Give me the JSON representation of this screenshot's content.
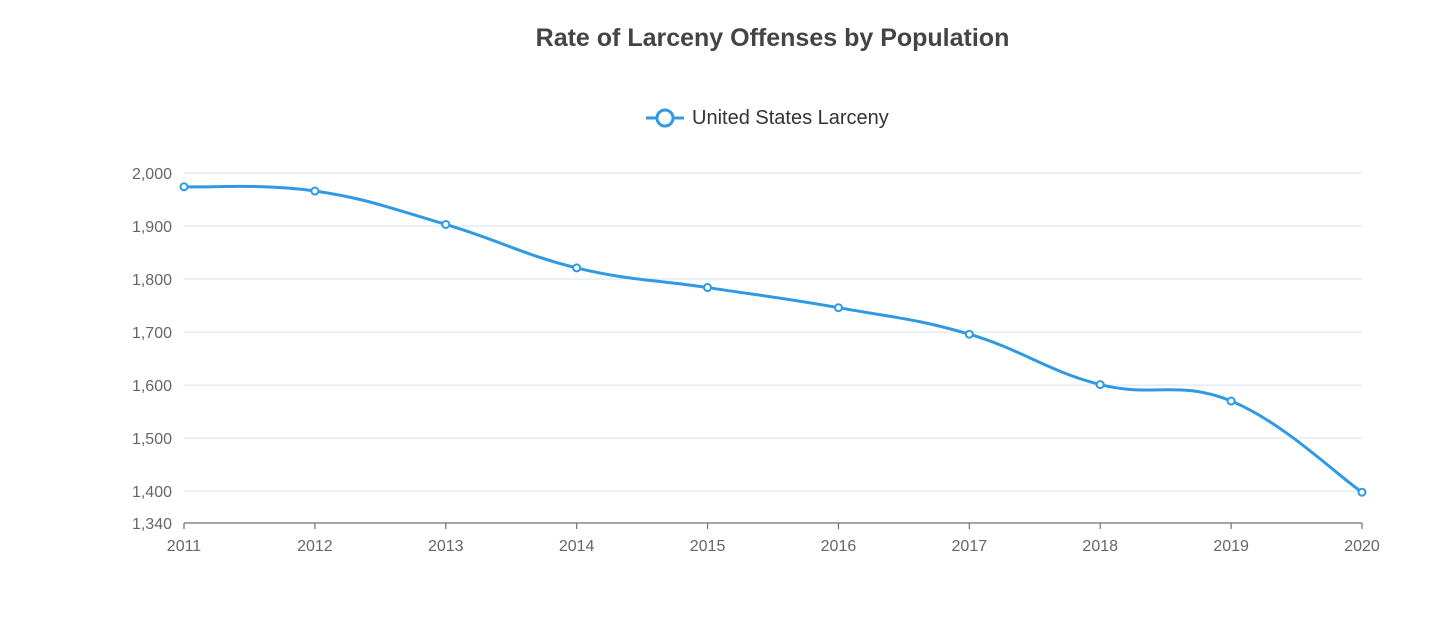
{
  "chart_data": {
    "type": "line",
    "title": "Rate of Larceny Offenses by Population",
    "xlabel": "",
    "ylabel": "",
    "x": [
      "2011",
      "2012",
      "2013",
      "2014",
      "2015",
      "2016",
      "2017",
      "2018",
      "2019",
      "2020"
    ],
    "series": [
      {
        "name": "United States Larceny",
        "color": "#2f9ae3",
        "values": [
          1974,
          1966,
          1903,
          1821,
          1784,
          1746,
          1696,
          1601,
          1570,
          1398
        ]
      }
    ],
    "ylim": [
      1340,
      2000
    ],
    "yticks": [
      2000,
      1900,
      1800,
      1700,
      1600,
      1500,
      1400,
      1340
    ],
    "ytick_labels": [
      "2,000",
      "1,900",
      "1,800",
      "1,700",
      "1,600",
      "1,500",
      "1,400",
      "1,340"
    ],
    "smooth": true,
    "grid": true,
    "legend_position": "top-center"
  }
}
